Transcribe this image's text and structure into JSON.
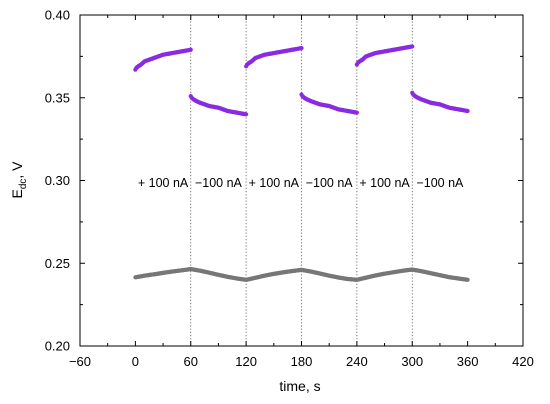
{
  "chart_data": {
    "type": "scatter",
    "xlabel": "time, s",
    "ylabel": "E_dc, V",
    "xlim": [
      -60,
      420
    ],
    "ylim": [
      0.2,
      0.4
    ],
    "xticks": [
      -60,
      0,
      60,
      120,
      180,
      240,
      300,
      360,
      420
    ],
    "yticks": [
      0.2,
      0.25,
      0.3,
      0.35,
      0.4
    ],
    "xtick_labels": [
      "−60",
      "0",
      "60",
      "120",
      "180",
      "240",
      "300",
      "360",
      "420"
    ],
    "ytick_labels": [
      "0.20",
      "0.25",
      "0.30",
      "0.35",
      "0.40"
    ],
    "grid": false,
    "legend": "none",
    "vlines": [
      60,
      120,
      180,
      240,
      300
    ],
    "annotations": [
      {
        "text": "+ 100 nA",
        "x": 30,
        "y": 0.296
      },
      {
        "text": "−100 nA",
        "x": 90,
        "y": 0.296
      },
      {
        "text": "+ 100 nA",
        "x": 150,
        "y": 0.296
      },
      {
        "text": "−100 nA",
        "x": 210,
        "y": 0.296
      },
      {
        "text": "+ 100 nA",
        "x": 270,
        "y": 0.296
      },
      {
        "text": "−100 nA",
        "x": 330,
        "y": 0.296
      }
    ],
    "series": [
      {
        "color": "#8a2be2",
        "segments": [
          {
            "x": [
              0,
              1,
              3,
              6,
              10,
              15,
              20,
              30,
              40,
              50,
              60
            ],
            "y": [
              0.367,
              0.368,
              0.369,
              0.37,
              0.372,
              0.373,
              0.374,
              0.376,
              0.377,
              0.378,
              0.379
            ]
          },
          {
            "x": [
              60,
              61,
              63,
              66,
              70,
              75,
              80,
              90,
              100,
              110,
              120
            ],
            "y": [
              0.351,
              0.35,
              0.349,
              0.348,
              0.347,
              0.346,
              0.345,
              0.344,
              0.342,
              0.341,
              0.34
            ]
          },
          {
            "x": [
              120,
              121,
              123,
              126,
              130,
              135,
              140,
              150,
              160,
              170,
              180
            ],
            "y": [
              0.369,
              0.37,
              0.371,
              0.372,
              0.374,
              0.375,
              0.376,
              0.377,
              0.378,
              0.379,
              0.38
            ]
          },
          {
            "x": [
              180,
              181,
              183,
              186,
              190,
              195,
              200,
              210,
              220,
              230,
              240
            ],
            "y": [
              0.352,
              0.351,
              0.35,
              0.349,
              0.348,
              0.347,
              0.346,
              0.345,
              0.343,
              0.342,
              0.341
            ]
          },
          {
            "x": [
              240,
              241,
              243,
              246,
              250,
              255,
              260,
              270,
              280,
              290,
              300
            ],
            "y": [
              0.37,
              0.371,
              0.372,
              0.373,
              0.375,
              0.376,
              0.377,
              0.378,
              0.379,
              0.38,
              0.381
            ]
          },
          {
            "x": [
              300,
              301,
              303,
              306,
              310,
              315,
              320,
              330,
              340,
              350,
              360
            ],
            "y": [
              0.353,
              0.352,
              0.351,
              0.35,
              0.349,
              0.348,
              0.347,
              0.346,
              0.344,
              0.343,
              0.342
            ]
          }
        ]
      },
      {
        "color": "#777777",
        "segments": [
          {
            "x": [
              0,
              10,
              20,
              30,
              40,
              50,
              60,
              70,
              80,
              90,
              100,
              110,
              120,
              130,
              140,
              150,
              160,
              170,
              180,
              190,
              200,
              210,
              220,
              230,
              240,
              250,
              260,
              270,
              280,
              290,
              300,
              310,
              320,
              330,
              340,
              350,
              360
            ],
            "y": [
              0.2415,
              0.2425,
              0.2433,
              0.2442,
              0.245,
              0.2457,
              0.2465,
              0.2455,
              0.2443,
              0.243,
              0.2418,
              0.2408,
              0.24,
              0.2412,
              0.2425,
              0.2436,
              0.2445,
              0.2453,
              0.246,
              0.245,
              0.2438,
              0.2425,
              0.2414,
              0.2405,
              0.24,
              0.2413,
              0.2426,
              0.2437,
              0.2446,
              0.2455,
              0.2462,
              0.2452,
              0.244,
              0.2428,
              0.2416,
              0.2408,
              0.24
            ]
          }
        ]
      }
    ]
  }
}
